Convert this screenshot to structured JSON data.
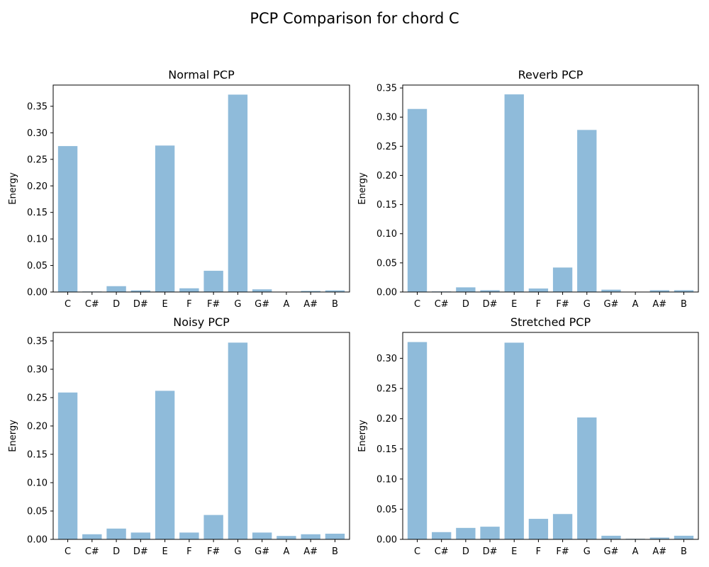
{
  "figure": {
    "title": "PCP Comparison for chord C",
    "bar_color": "#8fbbda"
  },
  "chart_data": [
    {
      "type": "bar",
      "title": "Normal PCP",
      "ylabel": "Energy",
      "xlabel": "",
      "categories": [
        "C",
        "C#",
        "D",
        "D#",
        "E",
        "F",
        "F#",
        "G",
        "G#",
        "A",
        "A#",
        "B"
      ],
      "values": [
        0.275,
        0.001,
        0.011,
        0.003,
        0.276,
        0.007,
        0.04,
        0.372,
        0.005,
        0.0,
        0.002,
        0.003
      ],
      "ylim": [
        0,
        0.39
      ],
      "yticks": [
        0.0,
        0.05,
        0.1,
        0.15,
        0.2,
        0.25,
        0.3,
        0.35
      ],
      "ytick_labels": [
        "0.00",
        "0.05",
        "0.10",
        "0.15",
        "0.20",
        "0.25",
        "0.30",
        "0.35"
      ],
      "grid": false
    },
    {
      "type": "bar",
      "title": "Reverb PCP",
      "ylabel": "Energy",
      "xlabel": "",
      "categories": [
        "C",
        "C#",
        "D",
        "D#",
        "E",
        "F",
        "F#",
        "G",
        "G#",
        "A",
        "A#",
        "B"
      ],
      "values": [
        0.314,
        0.001,
        0.008,
        0.003,
        0.339,
        0.006,
        0.042,
        0.278,
        0.004,
        0.0,
        0.003,
        0.003
      ],
      "ylim": [
        0,
        0.355
      ],
      "yticks": [
        0.0,
        0.05,
        0.1,
        0.15,
        0.2,
        0.25,
        0.3,
        0.35
      ],
      "ytick_labels": [
        "0.00",
        "0.05",
        "0.10",
        "0.15",
        "0.20",
        "0.25",
        "0.30",
        "0.35"
      ],
      "grid": false
    },
    {
      "type": "bar",
      "title": "Noisy PCP",
      "ylabel": "Energy",
      "xlabel": "",
      "categories": [
        "C",
        "C#",
        "D",
        "D#",
        "E",
        "F",
        "F#",
        "G",
        "G#",
        "A",
        "A#",
        "B"
      ],
      "values": [
        0.259,
        0.009,
        0.019,
        0.012,
        0.262,
        0.012,
        0.043,
        0.347,
        0.012,
        0.006,
        0.009,
        0.01
      ],
      "ylim": [
        0,
        0.365
      ],
      "yticks": [
        0.0,
        0.05,
        0.1,
        0.15,
        0.2,
        0.25,
        0.3,
        0.35
      ],
      "ytick_labels": [
        "0.00",
        "0.05",
        "0.10",
        "0.15",
        "0.20",
        "0.25",
        "0.30",
        "0.35"
      ],
      "grid": false
    },
    {
      "type": "bar",
      "title": "Stretched PCP",
      "ylabel": "Energy",
      "xlabel": "",
      "categories": [
        "C",
        "C#",
        "D",
        "D#",
        "E",
        "F",
        "F#",
        "G",
        "G#",
        "A",
        "A#",
        "B"
      ],
      "values": [
        0.327,
        0.012,
        0.019,
        0.021,
        0.326,
        0.034,
        0.042,
        0.202,
        0.006,
        0.001,
        0.003,
        0.006
      ],
      "ylim": [
        0,
        0.343
      ],
      "yticks": [
        0.0,
        0.05,
        0.1,
        0.15,
        0.2,
        0.25,
        0.3
      ],
      "ytick_labels": [
        "0.00",
        "0.05",
        "0.10",
        "0.15",
        "0.20",
        "0.25",
        "0.30"
      ],
      "grid": false
    }
  ]
}
